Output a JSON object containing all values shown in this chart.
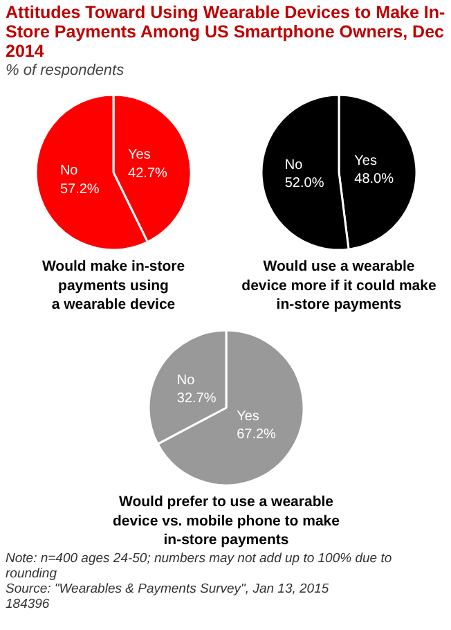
{
  "chart_data": [
    {
      "type": "pie",
      "title": "Attitudes Toward Using Wearable Devices to Make In-Store Payments Among US Smartphone Owners, Dec 2014",
      "subtitle": "% of respondents",
      "xlabel": "Would make in-store\npayments using\na wearable device",
      "categories": [
        "Yes",
        "No"
      ],
      "values": [
        42.7,
        57.2
      ],
      "value_labels": [
        "42.7%",
        "57.2%"
      ],
      "colors": [
        "#ff0000",
        "#ff0000"
      ]
    },
    {
      "type": "pie",
      "xlabel": "Would use a wearable\ndevice more if it could make\nin-store payments",
      "categories": [
        "Yes",
        "No"
      ],
      "values": [
        48.0,
        52.0
      ],
      "value_labels": [
        "48.0%",
        "52.0%"
      ],
      "colors": [
        "#000000",
        "#000000"
      ]
    },
    {
      "type": "pie",
      "xlabel": "Would prefer to use a wearable\ndevice vs. mobile phone to make\nin-store payments",
      "categories": [
        "Yes",
        "No"
      ],
      "values": [
        67.2,
        32.7
      ],
      "value_labels": [
        "67.2%",
        "32.7%"
      ],
      "colors": [
        "#999999",
        "#999999"
      ],
      "annotations": [
        "Note: n=400 ages 24-50; numbers may not add up to 100% due to rounding",
        "Source: \"Wearables & Payments Survey\", Jan 13, 2015",
        "184396"
      ]
    }
  ]
}
